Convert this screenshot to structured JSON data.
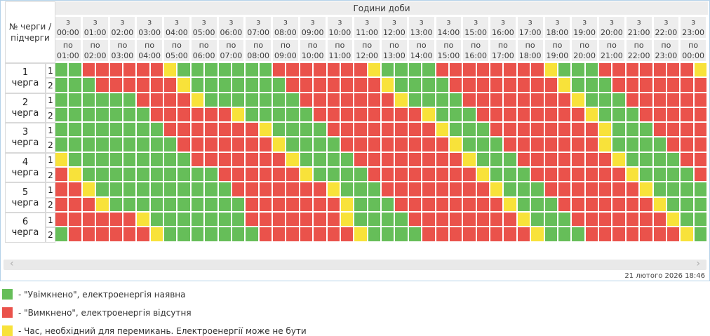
{
  "chart_data": {
    "type": "heatmap",
    "title": "Години доби",
    "corner_label": "№ черги / підчерги",
    "from_prefix": "з",
    "to_prefix": "по",
    "cell_minutes": 30,
    "states": {
      "G": "on",
      "R": "off",
      "Y": "switching"
    },
    "hours": [
      {
        "from": "00:00",
        "to": "01:00"
      },
      {
        "from": "01:00",
        "to": "02:00"
      },
      {
        "from": "02:00",
        "to": "03:00"
      },
      {
        "from": "03:00",
        "to": "04:00"
      },
      {
        "from": "04:00",
        "to": "05:00"
      },
      {
        "from": "05:00",
        "to": "06:00"
      },
      {
        "from": "06:00",
        "to": "07:00"
      },
      {
        "from": "07:00",
        "to": "08:00"
      },
      {
        "from": "08:00",
        "to": "09:00"
      },
      {
        "from": "09:00",
        "to": "10:00"
      },
      {
        "from": "10:00",
        "to": "11:00"
      },
      {
        "from": "11:00",
        "to": "12:00"
      },
      {
        "from": "12:00",
        "to": "13:00"
      },
      {
        "from": "13:00",
        "to": "14:00"
      },
      {
        "from": "14:00",
        "to": "15:00"
      },
      {
        "from": "15:00",
        "to": "16:00"
      },
      {
        "from": "16:00",
        "to": "17:00"
      },
      {
        "from": "17:00",
        "to": "18:00"
      },
      {
        "from": "18:00",
        "to": "19:00"
      },
      {
        "from": "19:00",
        "to": "20:00"
      },
      {
        "from": "20:00",
        "to": "21:00"
      },
      {
        "from": "21:00",
        "to": "22:00"
      },
      {
        "from": "22:00",
        "to": "23:00"
      },
      {
        "from": "23:00",
        "to": "00:00"
      }
    ],
    "queues": [
      {
        "number": "1",
        "word": "черга",
        "subqueues": [
          {
            "label": "1",
            "cells": "GGRRRRRRYGGGGGGGRRRRRRRYGGGGRRRRRRRRYGGGRRRRRRRY"
          },
          {
            "label": "2",
            "cells": "GGGRRRRRRYGGGGGGGRRRRRRRYGGGGRRRRRRRRYGGGRRRRRRR"
          }
        ]
      },
      {
        "number": "2",
        "word": "черга",
        "subqueues": [
          {
            "label": "1",
            "cells": "GGGGGGRRRRYGGGGGGGRRRRRRRYGGGGRRRRRRRRYGGGRRRRRR"
          },
          {
            "label": "2",
            "cells": "GGGGGGGRRRRRRYGGGGGRRRRRRRRYGGGRRRRRRRRYGGGRRRRR"
          }
        ]
      },
      {
        "number": "3",
        "word": "черга",
        "subqueues": [
          {
            "label": "1",
            "cells": "GGGGGGGGRRRRRRRYGGGGRRRRRRRRYGGGRRRRRRRRYGGGRRRR"
          },
          {
            "label": "2",
            "cells": "GGGGGGGGGRRRRRRRYGGGGRRRRRRRRYGGGRRRRRRRYGGGGRRR"
          }
        ]
      },
      {
        "number": "4",
        "word": "черга",
        "subqueues": [
          {
            "label": "1",
            "cells": "YGGGGGGGGGRRRRRRRYGGGGRRRRRRRRYGGGRRRRRRRYGGGGRR"
          },
          {
            "label": "2",
            "cells": "RYGGGGGGGGGGRRRRRRYGGGGRRRRRRRRYGGGRRRRRRRYGGGGR"
          }
        ]
      },
      {
        "number": "5",
        "word": "черга",
        "subqueues": [
          {
            "label": "1",
            "cells": "RRYGGGGGGGGGGRRRRRRRYGGGRRRRRRRRYGGGRRRRRRRYGGGG"
          },
          {
            "label": "2",
            "cells": "RRRYGGGGGGGGGGRRRRRRRYGGGRRRRRRRRYGGGRRRRRRRYGGG"
          }
        ]
      },
      {
        "number": "6",
        "word": "черга",
        "subqueues": [
          {
            "label": "1",
            "cells": "RRRRRRYGGGGGGGRRRRRRRYGGGGRRRRRRRRYGGGRRRRRRRYGG"
          },
          {
            "label": "2",
            "cells": "GRRRRRRYGGGGGGGRRRRRRRYGGGGRRRRRRRRYGGGRRRRRRRYG"
          }
        ]
      }
    ]
  },
  "colors": {
    "on": "#66be59",
    "off": "#ea524b",
    "switching": "#f8e23a"
  },
  "legend": [
    {
      "color_key": "on",
      "text": "- \"Увімкнено\", електроенергія наявна"
    },
    {
      "color_key": "off",
      "text": "- \"Вимкнено\", електроенергія відсутня"
    },
    {
      "color_key": "switching",
      "text": "- Час, необхідний для перемикань. Електроенергії може не бути"
    }
  ],
  "ui": {
    "scrollbar": {
      "left_glyph": "‹",
      "right_glyph": "›"
    },
    "footer": {
      "timestamp": "21 лютого 2026 18:46"
    }
  }
}
